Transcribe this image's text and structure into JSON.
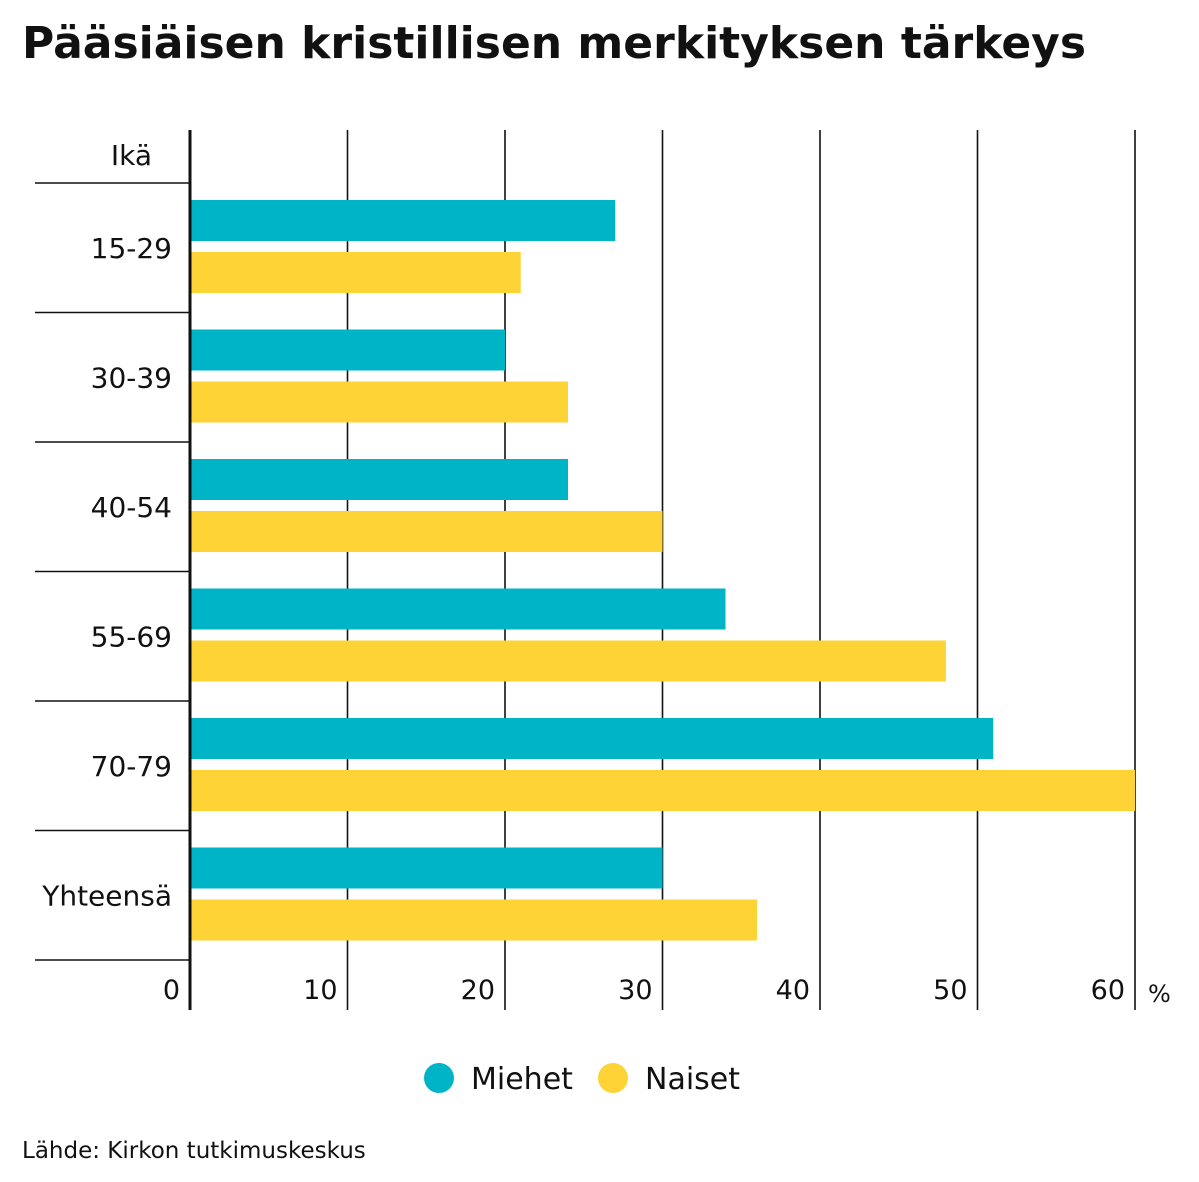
{
  "chart_data": {
    "type": "bar",
    "orientation": "horizontal",
    "title": "Pääsiäisen kristillisen merkityksen tärkeys",
    "category_header": "Ikä",
    "categories": [
      "15-29",
      "30-39",
      "40-54",
      "55-69",
      "70-79",
      "Yhteensä"
    ],
    "series": [
      {
        "name": "Miehet",
        "color": "#00b4c8",
        "values": [
          27,
          20,
          24,
          34,
          51,
          30
        ]
      },
      {
        "name": "Naiset",
        "color": "#fdd335",
        "values": [
          21,
          24,
          30,
          48,
          60,
          36
        ]
      }
    ],
    "xlim": [
      0,
      60
    ],
    "x_ticks": [
      0,
      10,
      20,
      30,
      40,
      50,
      60
    ],
    "x_unit": "%",
    "grid": true,
    "legend_position": "bottom-center",
    "source": "Lähde: Kirkon tutkimuskeskus"
  }
}
